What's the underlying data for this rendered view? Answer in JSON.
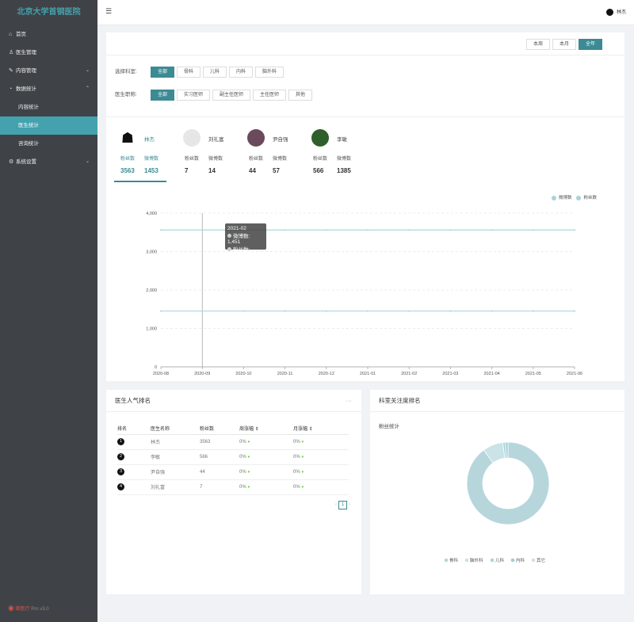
{
  "app": {
    "title": "北京大学首钢医院",
    "footer_brand": "微医疗",
    "footer_version": "Pro v3.0"
  },
  "sidebar": {
    "items": [
      {
        "label": "首页",
        "icon": "home-icon"
      },
      {
        "label": "医生管理",
        "icon": "user-icon"
      },
      {
        "label": "内容管理",
        "icon": "edit-icon"
      },
      {
        "label": "数据统计",
        "icon": "chart-icon"
      },
      {
        "label": "内容统计"
      },
      {
        "label": "医生统计"
      },
      {
        "label": "咨询统计"
      },
      {
        "label": "系统设置",
        "icon": "gear-icon"
      }
    ]
  },
  "topbar": {
    "user": "林杰"
  },
  "range": {
    "week": "本周",
    "month": "本月",
    "year": "全年"
  },
  "filters": {
    "dept_label": "选择科室:",
    "depts": [
      "全部",
      "骨科",
      "儿科",
      "内科",
      "脑外科"
    ],
    "title_label": "医生职称:",
    "titles": [
      "全部",
      "实习医师",
      "副主任医师",
      "主任医师",
      "其他"
    ]
  },
  "doctors": [
    {
      "name": "林杰",
      "fans_label": "粉丝数",
      "posts_label": "微博数",
      "fans": "3563",
      "posts": "1453"
    },
    {
      "name": "刘礼富",
      "fans_label": "粉丝数",
      "posts_label": "微博数",
      "fans": "7",
      "posts": "14"
    },
    {
      "name": "尹自强",
      "fans_label": "粉丝数",
      "posts_label": "微博数",
      "fans": "44",
      "posts": "57"
    },
    {
      "name": "李敏",
      "fans_label": "粉丝数",
      "posts_label": "微博数",
      "fans": "566",
      "posts": "1385"
    }
  ],
  "chart_data": [
    {
      "type": "line",
      "x": [
        "2020-08",
        "2020-09",
        "2020-10",
        "2020-11",
        "2020-12",
        "2021-01",
        "2021-02",
        "2021-03",
        "2021-04",
        "2021-05",
        "2021-06"
      ],
      "series": [
        {
          "name": "微博数",
          "values": [
            1451,
            1451,
            1451,
            1451,
            1451,
            1451,
            1451,
            1451,
            1451,
            1451,
            1451
          ]
        },
        {
          "name": "粉丝数",
          "values": [
            3563,
            3563,
            3563,
            3563,
            3563,
            3563,
            3563,
            3563,
            3563,
            3563,
            3563
          ]
        }
      ],
      "yticks": [
        "0",
        "1,000",
        "2,000",
        "3,000",
        "4,000"
      ],
      "ylim": [
        0,
        4000
      ],
      "grid": true,
      "legend": "top-right",
      "tooltip": {
        "title": "2021-02",
        "rows": [
          "微博数: 1,451",
          "粉丝数: 3,563"
        ]
      }
    },
    {
      "type": "pie",
      "title": "粉丝统计",
      "categories": [
        "骨科",
        "脑外科",
        "儿科",
        "内科",
        "其它"
      ],
      "values": [
        90,
        8,
        1,
        1,
        0
      ],
      "legend": "bottom"
    }
  ],
  "ranking": {
    "title": "医生人气排名",
    "more": "···",
    "headers": [
      "排名",
      "医生名称",
      "粉丝数",
      "周涨幅 ⇕",
      "月涨幅 ⇕"
    ],
    "rows": [
      {
        "rank": "1",
        "name": "林杰",
        "fans": "3563",
        "week": "0%",
        "month": "0%"
      },
      {
        "rank": "2",
        "name": "李敏",
        "fans": "566",
        "week": "0%",
        "month": "0%"
      },
      {
        "rank": "3",
        "name": "尹自强",
        "fans": "44",
        "week": "0%",
        "month": "0%"
      },
      {
        "rank": "4",
        "name": "刘礼富",
        "fans": "7",
        "week": "0%",
        "month": "0%"
      }
    ],
    "page": "1"
  },
  "dept_rank": {
    "title": "科室关注度排名"
  },
  "colors": {
    "accent": "#3c8a93",
    "line": "#a9d3d9",
    "sidebar": "#3f4347"
  }
}
